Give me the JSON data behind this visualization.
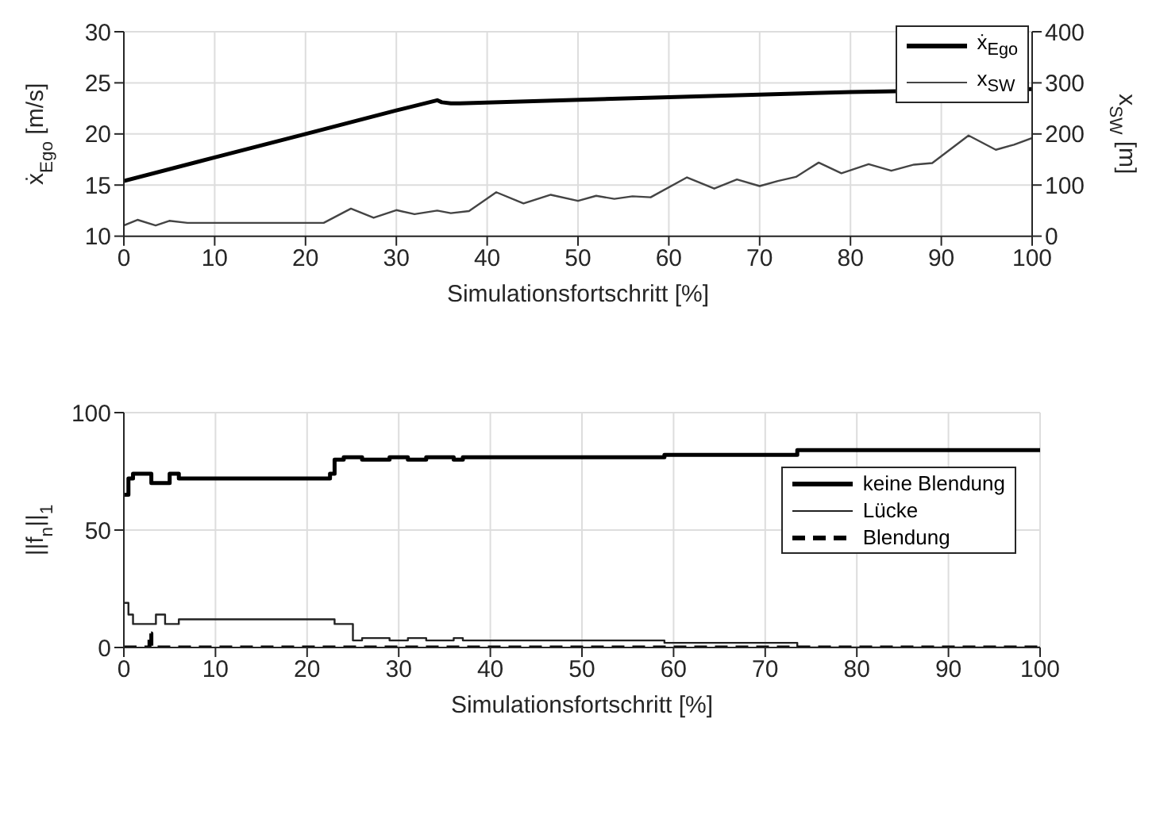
{
  "chart_data": [
    {
      "type": "line",
      "xlabel": "Simulationsfortschritt [%]",
      "ylabel": "ẋ$_{Ego}$ [m/s]",
      "y2label": "x$_{SW}$ [m]",
      "xlim": [
        0,
        100
      ],
      "xticks": [
        0,
        10,
        20,
        30,
        40,
        50,
        60,
        70,
        80,
        90,
        100
      ],
      "ylim": [
        10,
        30
      ],
      "yticks": [
        10,
        15,
        20,
        25,
        30
      ],
      "y2lim": [
        0,
        400
      ],
      "y2ticks": [
        0,
        100,
        200,
        300,
        400
      ],
      "grid": true,
      "legend": "top right",
      "series": [
        {
          "name": "ẋ$_{Ego}$",
          "color": "#000000",
          "x": [
            0,
            10,
            20,
            30,
            34.5,
            35,
            36,
            37,
            60,
            80,
            100
          ],
          "values": [
            15.4,
            17.7,
            20.0,
            22.3,
            23.3,
            23.1,
            23.0,
            23.0,
            23.6,
            24.1,
            24.4
          ]
        },
        {
          "name": "x$_{SW}$",
          "color": "#444444",
          "axis": "y2",
          "x": [
            0,
            1.5,
            3.5,
            5,
            7,
            22,
            25,
            27.5,
            30,
            32,
            34.5,
            36,
            38,
            41,
            44,
            47,
            50,
            52,
            54,
            56,
            58,
            62,
            65,
            67.5,
            70,
            72,
            74,
            76.5,
            79,
            82,
            84.5,
            87,
            89,
            93,
            96,
            98,
            100
          ],
          "values": [
            21,
            32,
            21,
            30,
            26,
            26,
            54,
            36,
            51,
            43,
            50,
            45,
            49,
            86,
            64,
            81,
            69,
            79,
            73,
            78,
            76,
            115,
            93,
            111,
            98,
            108,
            116,
            144,
            123,
            141,
            128,
            140,
            143,
            197,
            169,
            179,
            192
          ]
        }
      ]
    },
    {
      "type": "step",
      "xlabel": "Simulationsfortschritt [%]",
      "ylabel": "||f$_{n}$||$_{1}$",
      "xlim": [
        0,
        100
      ],
      "xticks": [
        0,
        10,
        20,
        30,
        40,
        50,
        60,
        70,
        80,
        90,
        100
      ],
      "ylim": [
        0,
        100
      ],
      "yticks": [
        0,
        50,
        100
      ],
      "grid": true,
      "legend": "right",
      "series": [
        {
          "name": "keine Blendung",
          "color": "#000000",
          "x": [
            0,
            0.5,
            1,
            3,
            5,
            6,
            22,
            22.5,
            23,
            24,
            26,
            29,
            31,
            33,
            36,
            37,
            59,
            73.5,
            100
          ],
          "values": [
            65,
            72,
            74,
            70,
            74,
            72,
            72,
            74,
            80,
            81,
            80,
            81,
            80,
            81,
            80,
            81,
            82,
            84,
            84
          ]
        },
        {
          "name": "Lücke",
          "color": "#222222",
          "x": [
            0,
            0.5,
            1,
            3.5,
            4.5,
            6,
            22,
            23,
            25,
            26,
            29,
            31,
            33,
            36,
            37,
            59,
            73.5,
            100
          ],
          "values": [
            19,
            14,
            10,
            14,
            10,
            12,
            12,
            10,
            3,
            4,
            3,
            4,
            3,
            4,
            3,
            2,
            0,
            0
          ]
        },
        {
          "name": "Blendung",
          "color": "#000000",
          "line_style": "dashed",
          "x": [
            0,
            2.8,
            3,
            100
          ],
          "values": [
            0,
            6,
            0,
            0
          ]
        }
      ]
    }
  ]
}
